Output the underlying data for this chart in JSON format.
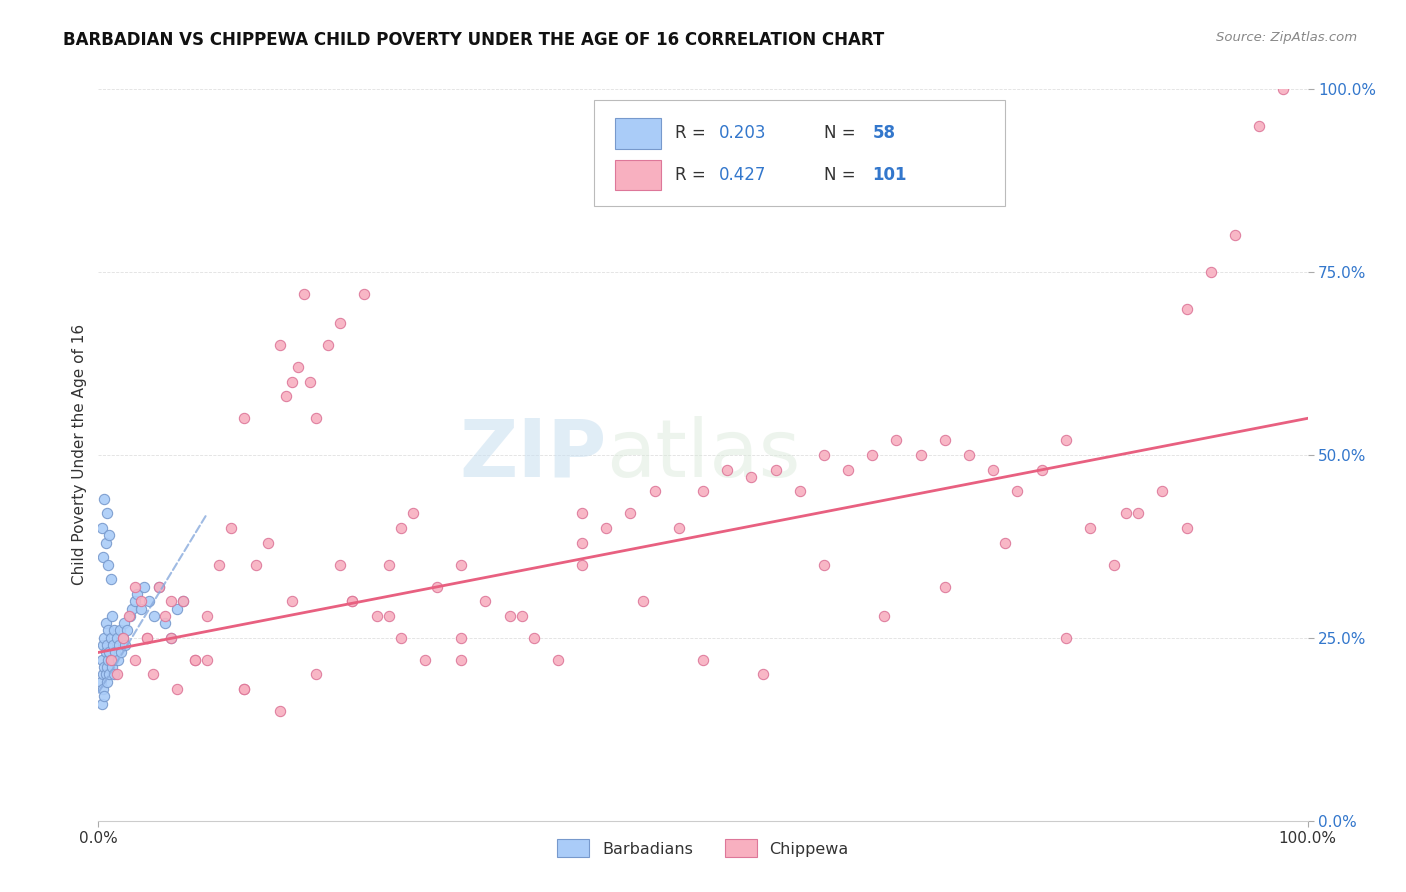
{
  "title": "BARBADIAN VS CHIPPEWA CHILD POVERTY UNDER THE AGE OF 16 CORRELATION CHART",
  "source": "Source: ZipAtlas.com",
  "ylabel": "Child Poverty Under the Age of 16",
  "xlim": [
    0.0,
    1.0
  ],
  "ylim": [
    0.0,
    1.0
  ],
  "x_tick_labels": [
    "0.0%",
    "100.0%"
  ],
  "y_tick_labels": [
    "100.0%",
    "75.0%",
    "50.0%",
    "25.0%",
    "0.0%"
  ],
  "y_tick_positions": [
    1.0,
    0.75,
    0.5,
    0.25,
    0.0
  ],
  "barbadian_color": "#aaccf8",
  "barbadian_edge_color": "#7799cc",
  "chippewa_color": "#f8b0c0",
  "chippewa_edge_color": "#dd7799",
  "trend_barbadian_color": "#88aadd",
  "trend_chippewa_color": "#e86080",
  "watermark_zip": "ZIP",
  "watermark_atlas": "atlas",
  "legend_R_barbadian": "0.203",
  "legend_N_barbadian": "58",
  "legend_R_chippewa": "0.427",
  "legend_N_chippewa": "101",
  "text_color": "#333333",
  "blue_color": "#3377cc",
  "grid_color": "#e0e0e0",
  "barbadian_x": [
    0.002,
    0.003,
    0.003,
    0.004,
    0.004,
    0.004,
    0.005,
    0.005,
    0.005,
    0.006,
    0.006,
    0.006,
    0.007,
    0.007,
    0.007,
    0.008,
    0.008,
    0.009,
    0.009,
    0.01,
    0.01,
    0.011,
    0.011,
    0.012,
    0.012,
    0.013,
    0.013,
    0.014,
    0.015,
    0.016,
    0.017,
    0.018,
    0.019,
    0.02,
    0.021,
    0.022,
    0.024,
    0.026,
    0.028,
    0.03,
    0.032,
    0.035,
    0.038,
    0.042,
    0.046,
    0.05,
    0.055,
    0.06,
    0.065,
    0.07,
    0.003,
    0.004,
    0.005,
    0.006,
    0.007,
    0.008,
    0.009,
    0.01
  ],
  "barbadian_y": [
    0.19,
    0.22,
    0.16,
    0.2,
    0.24,
    0.18,
    0.21,
    0.25,
    0.17,
    0.2,
    0.23,
    0.27,
    0.21,
    0.19,
    0.24,
    0.22,
    0.26,
    0.2,
    0.23,
    0.22,
    0.25,
    0.21,
    0.28,
    0.24,
    0.22,
    0.26,
    0.2,
    0.23,
    0.25,
    0.22,
    0.24,
    0.26,
    0.23,
    0.25,
    0.27,
    0.24,
    0.26,
    0.28,
    0.29,
    0.3,
    0.31,
    0.29,
    0.32,
    0.3,
    0.28,
    0.32,
    0.27,
    0.25,
    0.29,
    0.3,
    0.4,
    0.36,
    0.44,
    0.38,
    0.42,
    0.35,
    0.39,
    0.33
  ],
  "chippewa_x": [
    0.01,
    0.015,
    0.02,
    0.025,
    0.03,
    0.035,
    0.04,
    0.045,
    0.05,
    0.055,
    0.06,
    0.065,
    0.07,
    0.08,
    0.09,
    0.1,
    0.11,
    0.12,
    0.13,
    0.14,
    0.15,
    0.155,
    0.16,
    0.165,
    0.17,
    0.175,
    0.18,
    0.19,
    0.2,
    0.21,
    0.22,
    0.23,
    0.24,
    0.25,
    0.26,
    0.28,
    0.3,
    0.32,
    0.34,
    0.36,
    0.38,
    0.4,
    0.42,
    0.44,
    0.46,
    0.48,
    0.5,
    0.52,
    0.54,
    0.56,
    0.58,
    0.6,
    0.62,
    0.64,
    0.66,
    0.68,
    0.7,
    0.72,
    0.74,
    0.76,
    0.78,
    0.8,
    0.82,
    0.84,
    0.86,
    0.88,
    0.9,
    0.92,
    0.94,
    0.96,
    0.98,
    0.03,
    0.06,
    0.09,
    0.12,
    0.15,
    0.18,
    0.21,
    0.24,
    0.27,
    0.3,
    0.35,
    0.4,
    0.45,
    0.5,
    0.55,
    0.6,
    0.65,
    0.7,
    0.75,
    0.8,
    0.85,
    0.9,
    0.04,
    0.08,
    0.12,
    0.16,
    0.2,
    0.25,
    0.3,
    0.4
  ],
  "chippewa_y": [
    0.22,
    0.2,
    0.25,
    0.28,
    0.22,
    0.3,
    0.25,
    0.2,
    0.32,
    0.28,
    0.25,
    0.18,
    0.3,
    0.22,
    0.28,
    0.35,
    0.4,
    0.55,
    0.35,
    0.38,
    0.65,
    0.58,
    0.6,
    0.62,
    0.72,
    0.6,
    0.55,
    0.65,
    0.68,
    0.3,
    0.72,
    0.28,
    0.35,
    0.4,
    0.42,
    0.32,
    0.35,
    0.3,
    0.28,
    0.25,
    0.22,
    0.42,
    0.4,
    0.42,
    0.45,
    0.4,
    0.45,
    0.48,
    0.47,
    0.48,
    0.45,
    0.5,
    0.48,
    0.5,
    0.52,
    0.5,
    0.52,
    0.5,
    0.48,
    0.45,
    0.48,
    0.52,
    0.4,
    0.35,
    0.42,
    0.45,
    0.7,
    0.75,
    0.8,
    0.95,
    1.0,
    0.32,
    0.3,
    0.22,
    0.18,
    0.15,
    0.2,
    0.3,
    0.28,
    0.22,
    0.25,
    0.28,
    0.35,
    0.3,
    0.22,
    0.2,
    0.35,
    0.28,
    0.32,
    0.38,
    0.25,
    0.42,
    0.4,
    0.25,
    0.22,
    0.18,
    0.3,
    0.35,
    0.25,
    0.22,
    0.38
  ],
  "barb_trend_x0": 0.0,
  "barb_trend_y0": 0.175,
  "barb_trend_x1": 0.09,
  "barb_trend_y1": 0.42,
  "chip_trend_x0": 0.0,
  "chip_trend_y0": 0.23,
  "chip_trend_x1": 1.0,
  "chip_trend_y1": 0.55
}
